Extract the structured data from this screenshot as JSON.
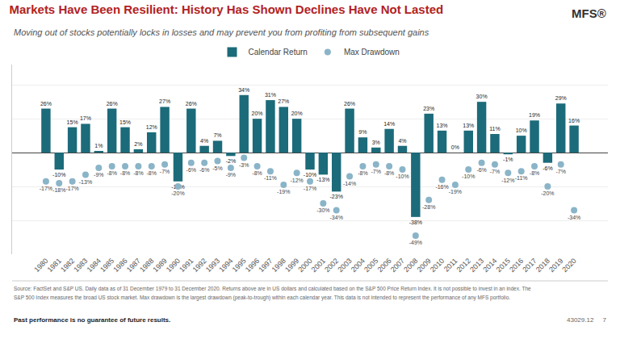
{
  "chart_data": {
    "type": "bar",
    "title": "Markets Have Been Resilient: History Has Shown Declines Have Not Lasted",
    "subtitle": "Moving out of stocks potentially locks in losses and may prevent you from profiting from subsequent gains",
    "categories": [
      "1980",
      "1981",
      "1982",
      "1983",
      "1984",
      "1985",
      "1986",
      "1987",
      "1988",
      "1989",
      "1990",
      "1991",
      "1992",
      "1993",
      "1994",
      "1995",
      "1996",
      "1997",
      "1998",
      "1999",
      "2000",
      "2001",
      "2002",
      "2003",
      "2004",
      "2005",
      "2006",
      "2007",
      "2008",
      "2009",
      "2010",
      "2011",
      "2012",
      "2013",
      "2014",
      "2015",
      "2016",
      "2017",
      "2018",
      "2019",
      "2020"
    ],
    "series": [
      {
        "name": "Calendar Return",
        "type": "bar",
        "color": "#1c6b7a",
        "values": [
          26,
          -10,
          15,
          17,
          1,
          26,
          15,
          2,
          12,
          27,
          -17,
          26,
          4,
          7,
          -2,
          34,
          20,
          31,
          27,
          20,
          -10,
          -13,
          -23,
          26,
          9,
          3,
          14,
          4,
          -38,
          23,
          13,
          0,
          13,
          30,
          11,
          -1,
          10,
          19,
          -6,
          29,
          16
        ],
        "value_labels": [
          "26%",
          "-10%",
          "15%",
          "17%",
          "1%",
          "26%",
          "15%",
          "2%",
          "12%",
          "27%",
          "-17%",
          "26%",
          "4%",
          "7%",
          "-2%",
          "34%",
          "20%",
          "31%",
          "27%",
          "20%",
          "-10%",
          "-13%",
          "-23%",
          "26%",
          "9%",
          "3%",
          "14%",
          "4%",
          "-38%",
          "23%",
          "13%",
          "0%",
          "13%",
          "30%",
          "11%",
          "-1%",
          "10%",
          "19%",
          "-6%",
          "29%",
          "16%"
        ]
      },
      {
        "name": "Max Drawdown",
        "type": "scatter",
        "marker": "circle",
        "color": "#8ab4c8",
        "values": [
          -17,
          -18,
          -17,
          -13,
          -9,
          -8,
          -8,
          -8,
          -8,
          -7,
          -20,
          -6,
          -6,
          -5,
          -9,
          -3,
          -8,
          -11,
          -19,
          -12,
          -17,
          -30,
          -34,
          -14,
          -8,
          -7,
          -8,
          -10,
          -49,
          -28,
          -16,
          -19,
          -10,
          -6,
          -7,
          -12,
          -11,
          -8,
          -20,
          -7,
          -34
        ],
        "value_labels": [
          "-17%",
          "-18%",
          "-17%",
          "-13%",
          "-9%",
          "-8%",
          "-8%",
          "-8%",
          "-8%",
          "-7%",
          "-20%",
          "-6%",
          "-6%",
          "-5%",
          "-9%",
          "-3%",
          "-8%",
          "-11%",
          "-19%",
          "-12%",
          "-17%",
          "-30%",
          "-34%",
          "-14%",
          "-8%",
          "-7%",
          "-8%",
          "-10%",
          "-49%",
          "-28%",
          "-16%",
          "-19%",
          "-10%",
          "-6%",
          "-7%",
          "-12%",
          "-11%",
          "-8%",
          "-20%",
          "-7%",
          "-34%"
        ]
      }
    ],
    "ylim": [
      -60,
      52
    ],
    "yticks": [
      -40,
      -20,
      0,
      20,
      40
    ],
    "grid": true,
    "legend": "top",
    "data_labels": true,
    "tick_labels": "x",
    "annotations": [
      "MFS®",
      "Source: FactSet and S&P US. Daily data as of 31 December 1979 to 31 December 2020. Returns above are in US dollars and calculated based on the S&P 500 Price Return Index. It is not possible to invest in an index. The",
      "S&P 500 Index measures the broad US stock market. Max drawdown is the largest drawdown (peak-to-trough) within each calendar year. This data is not intended to represent the performance of any MFS portfolio.",
      "Past performance is no guarantee of future results.",
      "43029.12     7"
    ]
  }
}
